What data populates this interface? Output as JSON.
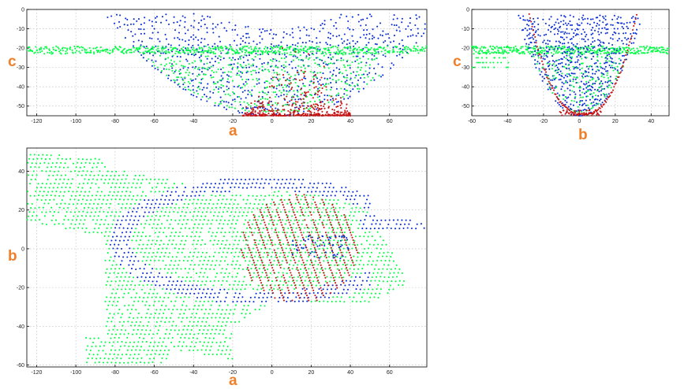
{
  "colors": {
    "series": [
      "#00ff44",
      "#0b2fd6",
      "#c81414"
    ],
    "axis_letter": "#f07f2a"
  },
  "chart_data": [
    {
      "type": "scatter",
      "panel": "top-left",
      "title": "",
      "xlabel": "a",
      "ylabel": "c",
      "xlim": [
        -125,
        79
      ],
      "ylim": [
        -55,
        0
      ],
      "xticks": [
        -120,
        -100,
        -80,
        -60,
        -40,
        -20,
        0,
        20,
        40,
        60
      ],
      "yticks": [
        0,
        -10,
        -20,
        -30,
        -40,
        -50
      ],
      "grid": true,
      "series": [
        {
          "color": "green",
          "shape": "flat sheet near c=-20 from a=-125 to a=80, dipping to a bowl reaching c=-53 between a=-60 and a=50"
        },
        {
          "color": "blue",
          "shape": "bowl from a=-88 to a=78, bottom c=-55 near a=0, rim up to c=-3"
        },
        {
          "color": "red",
          "shape": "cluster a=-15 to a=40, c=-55 to c=-5, densest near c=-50"
        }
      ]
    },
    {
      "type": "scatter",
      "panel": "top-right",
      "title": "",
      "xlabel": "b",
      "ylabel": "c",
      "xlim": [
        -60,
        50
      ],
      "ylim": [
        -55,
        0
      ],
      "xticks": [
        -60,
        -40,
        -20,
        0,
        20,
        40
      ],
      "yticks": [
        0,
        -10,
        -20,
        -30,
        -40,
        -50
      ],
      "grid": true,
      "series": [
        {
          "color": "green",
          "shape": "flat sheet near c=-20 from b=-60 to b=50, lobe down to c=-30 near b=-50"
        },
        {
          "color": "blue",
          "shape": "U-shaped bowl b=-35 to b=35, bottom c=-55 at b=0"
        },
        {
          "color": "red",
          "shape": "U-shaped arc b=-28 to b=32, bottom c=-55 near b=0"
        }
      ]
    },
    {
      "type": "scatter",
      "panel": "bottom",
      "title": "",
      "xlabel": "a",
      "ylabel": "b",
      "xlim": [
        -125,
        79
      ],
      "ylim": [
        -61,
        52
      ],
      "xticks": [
        -120,
        -100,
        -80,
        -60,
        -40,
        -20,
        0,
        20,
        40,
        60
      ],
      "yticks": [
        40,
        20,
        0,
        -20,
        -40,
        -60
      ],
      "grid": true,
      "series": [
        {
          "color": "green",
          "shape": "large irregular region a=-125 to a=78, b=-60 to b=50"
        },
        {
          "color": "blue",
          "shape": "C-shaped band around centre a=-85 to a=78, b=-37 to b=32"
        },
        {
          "color": "red",
          "shape": "ellipse of diagonal stripes a=-15 to a=45, b=-28 to b=28"
        }
      ]
    }
  ],
  "labels": {
    "panel1_x": "a",
    "panel1_y": "c",
    "panel2_x": "b",
    "panel2_y": "c",
    "panel3_x": "a",
    "panel3_y": "b"
  }
}
